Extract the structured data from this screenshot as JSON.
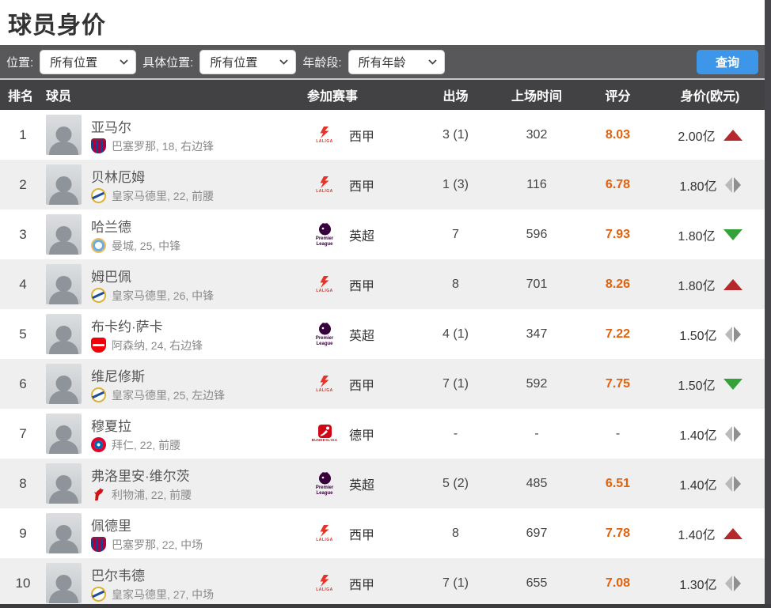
{
  "page": {
    "title": "球员身价"
  },
  "filters": {
    "position_label": "位置:",
    "position_value": "所有位置",
    "specific_label": "具体位置:",
    "specific_value": "所有位置",
    "age_label": "年龄段:",
    "age_value": "所有年龄",
    "search_button": "查询"
  },
  "table": {
    "headers": {
      "rank": "排名",
      "player": "球员",
      "league": "参加赛事",
      "appearances": "出场",
      "minutes": "上场时间",
      "rating": "评分",
      "value": "身价(欧元)"
    },
    "rows": [
      {
        "rank": "1",
        "name": "亚马尔",
        "club": "barcelona",
        "club_info": "巴塞罗那, 18, 右边锋",
        "league_key": "laliga",
        "appearances": "3 (1)",
        "minutes": "302",
        "rating": "8.03",
        "value": "2.00亿",
        "trend": "up"
      },
      {
        "rank": "2",
        "name": "贝林厄姆",
        "club": "real-madrid",
        "club_info": "皇家马德里, 22, 前腰",
        "league_key": "laliga",
        "appearances": "1 (3)",
        "minutes": "116",
        "rating": "6.78",
        "value": "1.80亿",
        "trend": "flat"
      },
      {
        "rank": "3",
        "name": "哈兰德",
        "club": "man-city",
        "club_info": "曼城, 25, 中锋",
        "league_key": "epl",
        "appearances": "7",
        "minutes": "596",
        "rating": "7.93",
        "value": "1.80亿",
        "trend": "down"
      },
      {
        "rank": "4",
        "name": "姆巴佩",
        "club": "real-madrid",
        "club_info": "皇家马德里, 26, 中锋",
        "league_key": "laliga",
        "appearances": "8",
        "minutes": "701",
        "rating": "8.26",
        "value": "1.80亿",
        "trend": "up"
      },
      {
        "rank": "5",
        "name": "布卡约·萨卡",
        "club": "arsenal",
        "club_info": "阿森纳, 24, 右边锋",
        "league_key": "epl",
        "appearances": "4 (1)",
        "minutes": "347",
        "rating": "7.22",
        "value": "1.50亿",
        "trend": "flat"
      },
      {
        "rank": "6",
        "name": "维尼修斯",
        "club": "real-madrid",
        "club_info": "皇家马德里, 25, 左边锋",
        "league_key": "laliga",
        "appearances": "7 (1)",
        "minutes": "592",
        "rating": "7.75",
        "value": "1.50亿",
        "trend": "down"
      },
      {
        "rank": "7",
        "name": "穆夏拉",
        "club": "bayern",
        "club_info": "拜仁, 22, 前腰",
        "league_key": "bundesliga",
        "appearances": "-",
        "minutes": "-",
        "rating": "-",
        "value": "1.40亿",
        "trend": "flat"
      },
      {
        "rank": "8",
        "name": "弗洛里安·维尔茨",
        "club": "liverpool",
        "club_info": "利物浦, 22, 前腰",
        "league_key": "epl",
        "appearances": "5 (2)",
        "minutes": "485",
        "rating": "6.51",
        "value": "1.40亿",
        "trend": "flat"
      },
      {
        "rank": "9",
        "name": "佩德里",
        "club": "barcelona",
        "club_info": "巴塞罗那, 22, 中场",
        "league_key": "laliga",
        "appearances": "8",
        "minutes": "697",
        "rating": "7.78",
        "value": "1.40亿",
        "trend": "up"
      },
      {
        "rank": "10",
        "name": "巴尔韦德",
        "club": "real-madrid",
        "club_info": "皇家马德里, 27, 中场",
        "league_key": "laliga",
        "appearances": "7 (1)",
        "minutes": "655",
        "rating": "7.08",
        "value": "1.30亿",
        "trend": "flat"
      }
    ]
  },
  "leagues": {
    "laliga": {
      "label": "西甲",
      "caption": "LALIGA"
    },
    "epl": {
      "label": "英超",
      "caption": "Premier League"
    },
    "bundesliga": {
      "label": "德甲",
      "caption": "BUNDESLIGA"
    }
  },
  "icons": {
    "dropdown": "chevron-down",
    "trend_up": "red-triangle-up",
    "trend_down": "green-triangle-down",
    "trend_flat": "gray-diamond-left-right"
  },
  "colors": {
    "filter_bar_bg": "#58585a",
    "table_header_bg": "#424244",
    "query_button": "#3d96e8",
    "rating_orange": "#e2610d",
    "trend_up_red": "#b5282c",
    "trend_down_green": "#35a239",
    "row_alt": "#efefef",
    "laliga_red": "#e6332a",
    "premier_purple": "#38003c",
    "bundesliga_red": "#d20515"
  }
}
